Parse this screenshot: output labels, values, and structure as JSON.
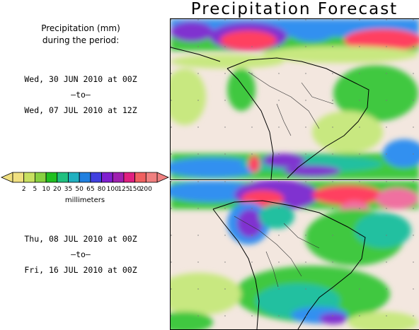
{
  "title": "Precipitation Forecast",
  "header": {
    "line1": "Precipitation (mm)",
    "line2": "during the period:"
  },
  "period1": {
    "start": "Wed, 30 JUN 2010 at 00Z",
    "sep": "–to–",
    "end": "Wed, 07 JUL 2010 at 12Z"
  },
  "period2": {
    "start": "Thu, 08 JUL 2010 at 00Z",
    "sep": "–to–",
    "end": "Fri, 16 JUL 2010 at 00Z"
  },
  "legend": {
    "labels": [
      "2",
      "5",
      "10",
      "20",
      "35",
      "50",
      "65",
      "80",
      "100",
      "125",
      "150",
      "200"
    ],
    "colors": [
      "#f0e080",
      "#c8e060",
      "#88d040",
      "#20c020",
      "#20c080",
      "#20b0c0",
      "#2080e0",
      "#4040e0",
      "#8020d0",
      "#a020b0",
      "#e02080",
      "#f06060",
      "#f08080"
    ],
    "unit": "millimeters"
  },
  "map_colors": {
    "land": "#f3e7df",
    "border": "#000000",
    "light": "#c8e880",
    "green": "#40c840",
    "teal": "#20c0a0",
    "blue": "#3090f0",
    "purple": "#8030d0",
    "red": "#ff4060",
    "pink": "#f070a0"
  }
}
